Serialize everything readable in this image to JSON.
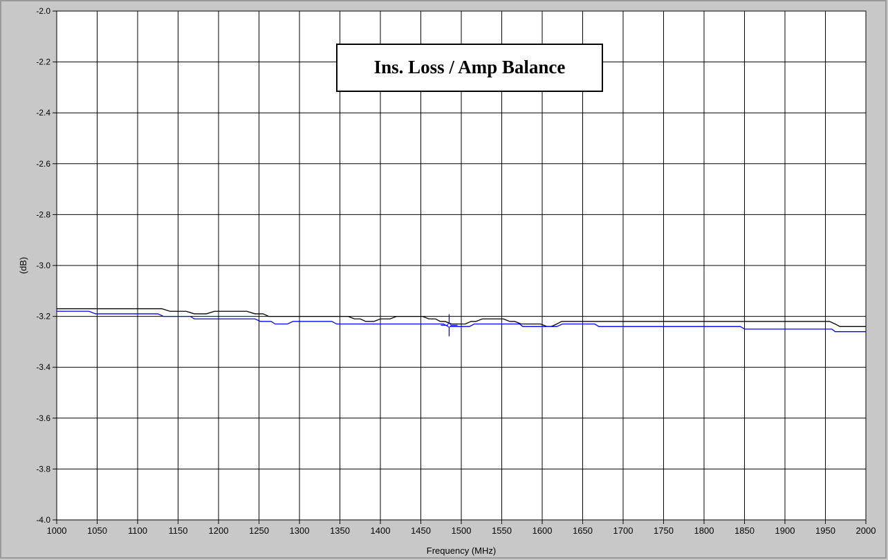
{
  "chart_data": {
    "type": "line",
    "title": "Ins. Loss / Amp Balance",
    "xlabel": "Frequency (MHz)",
    "ylabel": "(dB)",
    "xlim": [
      1000,
      2000
    ],
    "ylim": [
      -4.0,
      -2.0
    ],
    "x_ticks": [
      "1000",
      "1050",
      "1100",
      "1150",
      "1200",
      "1250",
      "1300",
      "1350",
      "1400",
      "1450",
      "1500",
      "1550",
      "1600",
      "1650",
      "1700",
      "1750",
      "1800",
      "1850",
      "1900",
      "1950",
      "2000"
    ],
    "y_ticks": [
      "-2.0",
      "-2.2",
      "-2.4",
      "-2.6",
      "-2.8",
      "-3.0",
      "-3.2",
      "-3.4",
      "-3.6",
      "-3.8",
      "-4.0"
    ],
    "grid": true,
    "series": [
      {
        "color": "#000000",
        "points": [
          [
            1000,
            -3.17
          ],
          [
            1130,
            -3.17
          ],
          [
            1140,
            -3.18
          ],
          [
            1160,
            -3.18
          ],
          [
            1170,
            -3.19
          ],
          [
            1185,
            -3.19
          ],
          [
            1195,
            -3.18
          ],
          [
            1235,
            -3.18
          ],
          [
            1245,
            -3.19
          ],
          [
            1255,
            -3.19
          ],
          [
            1262,
            -3.2
          ],
          [
            1360,
            -3.2
          ],
          [
            1368,
            -3.21
          ],
          [
            1375,
            -3.21
          ],
          [
            1382,
            -3.22
          ],
          [
            1392,
            -3.22
          ],
          [
            1400,
            -3.21
          ],
          [
            1412,
            -3.21
          ],
          [
            1420,
            -3.2
          ],
          [
            1452,
            -3.2
          ],
          [
            1460,
            -3.21
          ],
          [
            1468,
            -3.21
          ],
          [
            1474,
            -3.22
          ],
          [
            1480,
            -3.22
          ],
          [
            1488,
            -3.23
          ],
          [
            1505,
            -3.23
          ],
          [
            1512,
            -3.22
          ],
          [
            1518,
            -3.22
          ],
          [
            1526,
            -3.21
          ],
          [
            1552,
            -3.21
          ],
          [
            1560,
            -3.22
          ],
          [
            1566,
            -3.22
          ],
          [
            1574,
            -3.23
          ],
          [
            1598,
            -3.23
          ],
          [
            1606,
            -3.24
          ],
          [
            1611,
            -3.24
          ],
          [
            1618,
            -3.23
          ],
          [
            1624,
            -3.22
          ],
          [
            1820,
            -3.22
          ],
          [
            1955,
            -3.22
          ],
          [
            1962,
            -3.23
          ],
          [
            1968,
            -3.24
          ],
          [
            2000,
            -3.24
          ]
        ]
      },
      {
        "color": "#0000ff",
        "points": [
          [
            1000,
            -3.18
          ],
          [
            1040,
            -3.18
          ],
          [
            1048,
            -3.19
          ],
          [
            1125,
            -3.19
          ],
          [
            1132,
            -3.2
          ],
          [
            1165,
            -3.2
          ],
          [
            1170,
            -3.21
          ],
          [
            1245,
            -3.21
          ],
          [
            1252,
            -3.22
          ],
          [
            1265,
            -3.22
          ],
          [
            1270,
            -3.23
          ],
          [
            1285,
            -3.23
          ],
          [
            1292,
            -3.22
          ],
          [
            1340,
            -3.22
          ],
          [
            1346,
            -3.23
          ],
          [
            1478,
            -3.23
          ],
          [
            1484,
            -3.24
          ],
          [
            1510,
            -3.24
          ],
          [
            1516,
            -3.23
          ],
          [
            1572,
            -3.23
          ],
          [
            1576,
            -3.24
          ],
          [
            1618,
            -3.24
          ],
          [
            1625,
            -3.23
          ],
          [
            1665,
            -3.23
          ],
          [
            1670,
            -3.24
          ],
          [
            1845,
            -3.24
          ],
          [
            1850,
            -3.25
          ],
          [
            1958,
            -3.25
          ],
          [
            1962,
            -3.26
          ],
          [
            2000,
            -3.26
          ]
        ]
      }
    ],
    "marker": {
      "x": 1485,
      "y": -3.235,
      "color": "#0000ff"
    }
  }
}
